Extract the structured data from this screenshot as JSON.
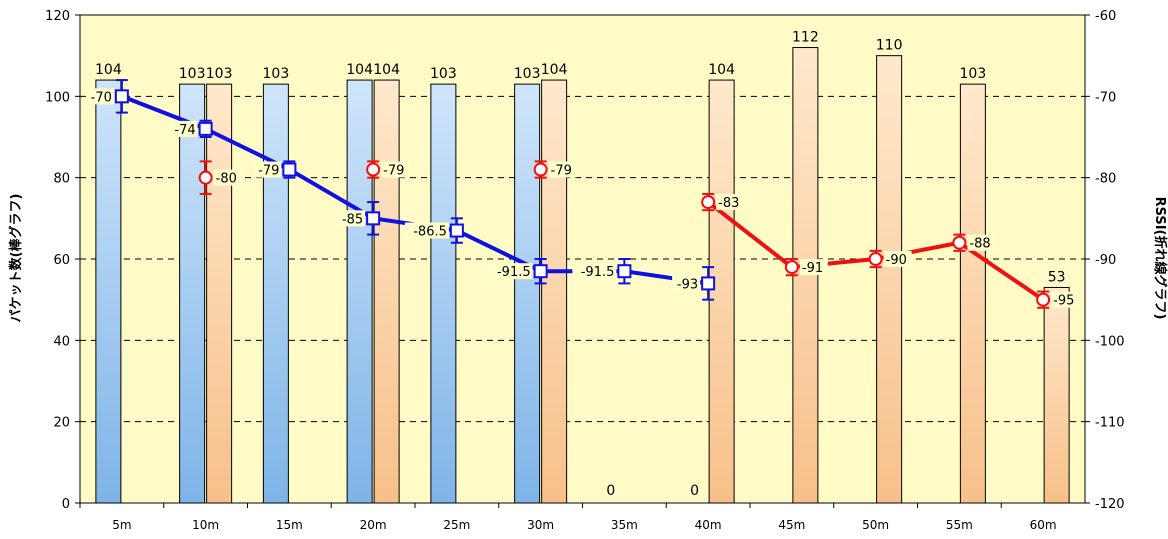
{
  "chart_data": {
    "type": "bar+line",
    "categories": [
      "5m",
      "10m",
      "15m",
      "20m",
      "25m",
      "30m",
      "35m",
      "40m",
      "45m",
      "50m",
      "55m",
      "60m"
    ],
    "ylabel_left": "パケット数(棒グラフ)",
    "ylabel_right": "RSSI(折れ線グラフ)",
    "ylim_left": [
      0,
      120
    ],
    "yticks_left": [
      0,
      20,
      40,
      60,
      80,
      100,
      120
    ],
    "ylim_right": [
      -120,
      -60
    ],
    "yticks_right": [
      -120,
      -110,
      -100,
      -90,
      -80,
      -70,
      -60
    ],
    "grid": "dashed horizontal",
    "bar_series": [
      {
        "color_top": "#cfe5fb",
        "color_bottom": "#7fb4e8",
        "values": [
          104,
          103,
          103,
          104,
          103,
          103,
          0,
          0,
          null,
          null,
          null,
          null
        ],
        "labels": [
          "104",
          "103",
          "103",
          "104",
          "103",
          "103",
          "0",
          "0",
          "",
          "",
          "",
          ""
        ]
      },
      {
        "color_top": "#ffe9cc",
        "color_bottom": "#f7c08a",
        "values": [
          null,
          103,
          null,
          104,
          null,
          104,
          null,
          104,
          112,
          110,
          103,
          53
        ],
        "labels": [
          "",
          "103",
          "",
          "104",
          "",
          "104",
          "",
          "104",
          "112",
          "110",
          "103",
          "53"
        ]
      }
    ],
    "line_series": [
      {
        "color": "#1010e0",
        "marker": "square",
        "values": [
          -70,
          -74,
          -79,
          -85,
          -86.5,
          -91.5,
          -91.5,
          -93,
          null,
          null,
          null,
          null
        ],
        "labels": [
          "-70",
          "-74",
          "-79",
          "-85",
          "-86.5",
          "-91.5",
          "-91.5",
          "-93",
          "",
          "",
          "",
          ""
        ],
        "err_low": [
          -72,
          -75,
          -80,
          -87,
          -88,
          -93,
          -93,
          -95,
          null,
          null,
          null,
          null
        ],
        "err_high": [
          -68,
          -73,
          -78,
          -83,
          -85,
          -90,
          -90,
          -91,
          null,
          null,
          null,
          null
        ]
      },
      {
        "color": "#ee1111",
        "marker": "circle",
        "values": [
          null,
          -80,
          null,
          -79,
          null,
          -79,
          null,
          -83,
          -91,
          -90,
          -88,
          -95
        ],
        "labels": [
          "",
          "-80",
          "",
          "-79",
          "",
          "-79",
          "",
          "-83",
          "-91",
          "-90",
          "-88",
          "-95"
        ],
        "err_low": [
          null,
          -82,
          null,
          -80,
          null,
          -80,
          null,
          -84,
          -92,
          -91,
          -89,
          -96
        ],
        "err_high": [
          null,
          -78,
          null,
          -78,
          null,
          -78,
          null,
          -82,
          -90,
          -89,
          -87,
          -94
        ]
      }
    ],
    "line_connections": [
      {
        "series": 0,
        "from": 0,
        "to": 7
      },
      {
        "series": 1,
        "from": 7,
        "to": 11
      }
    ]
  }
}
